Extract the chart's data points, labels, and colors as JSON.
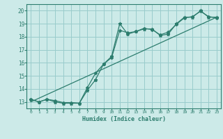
{
  "xlabel": "Humidex (Indice chaleur)",
  "bg_color": "#cceae8",
  "grid_color": "#99cccc",
  "line_color": "#2d7d6e",
  "xlim": [
    -0.5,
    23.5
  ],
  "ylim": [
    12.5,
    20.5
  ],
  "xticks": [
    0,
    1,
    2,
    3,
    4,
    5,
    6,
    7,
    8,
    9,
    10,
    11,
    12,
    13,
    14,
    15,
    16,
    17,
    18,
    19,
    20,
    21,
    22,
    23
  ],
  "yticks": [
    13,
    14,
    15,
    16,
    17,
    18,
    19,
    20
  ],
  "line1_x": [
    0,
    1,
    2,
    3,
    4,
    5,
    6,
    7,
    8,
    9,
    10,
    11,
    12,
    13,
    14,
    15,
    16,
    17,
    18,
    19,
    20,
    21,
    22,
    23
  ],
  "line1_y": [
    13.2,
    13.0,
    13.2,
    13.0,
    12.9,
    12.9,
    12.9,
    13.9,
    14.7,
    15.9,
    16.5,
    19.0,
    18.2,
    18.4,
    18.6,
    18.6,
    18.1,
    18.2,
    19.0,
    19.5,
    19.5,
    20.0,
    19.5,
    19.5
  ],
  "line2_x": [
    0,
    1,
    2,
    3,
    4,
    5,
    6,
    7,
    8,
    9,
    10,
    11,
    12,
    13,
    14,
    15,
    16,
    17,
    18,
    19,
    20,
    21,
    22,
    23
  ],
  "line2_y": [
    13.2,
    13.0,
    13.2,
    13.1,
    12.95,
    12.95,
    12.9,
    14.1,
    15.2,
    15.9,
    16.4,
    18.5,
    18.3,
    18.4,
    18.65,
    18.55,
    18.15,
    18.35,
    18.95,
    19.45,
    19.55,
    19.95,
    19.55,
    19.45
  ],
  "line3_x": [
    0,
    23
  ],
  "line3_y": [
    13.0,
    19.5
  ]
}
